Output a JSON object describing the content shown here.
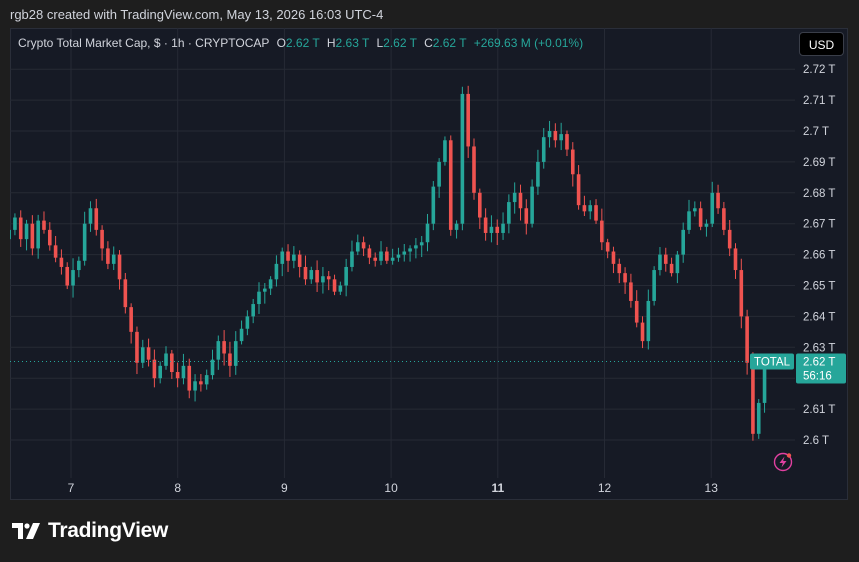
{
  "attribution": "rgb28 created with TradingView.com, May 13, 2026 16:03 UTC-4",
  "header": {
    "symbol": "Crypto Total Market Cap, $ · 1h · CRYPTOCAP",
    "o_label": "O",
    "o_value": "2.62 T",
    "h_label": "H",
    "h_value": "2.63 T",
    "l_label": "L",
    "l_value": "2.62 T",
    "c_label": "C",
    "c_value": "2.62 T",
    "change": "+269.63 M (+0.01%)"
  },
  "currency_button": "USD",
  "price_tag": {
    "label": "TOTAL",
    "value": "2.62 T",
    "countdown": "56:16"
  },
  "brand": "TradingView",
  "icons": {
    "bolt": "lightning-bolt-icon",
    "logo": "tradingview-logo-icon"
  },
  "colors": {
    "up": "#26a69a",
    "down": "#ef5350",
    "background": "#161a25",
    "grid": "#262a35",
    "axis_text": "#d1d4dc",
    "price_tag": "#26a69a",
    "bolt": "#e040a0"
  },
  "chart_data": {
    "type": "candlestick",
    "unit": "T",
    "ylim": [
      2.595,
      2.725
    ],
    "y_ticks": [
      {
        "value": 2.6,
        "label": "2.6 T"
      },
      {
        "value": 2.61,
        "label": "2.61 T"
      },
      {
        "value": 2.62,
        "label": "2.62 T"
      },
      {
        "value": 2.63,
        "label": "2.63 T"
      },
      {
        "value": 2.64,
        "label": "2.64 T"
      },
      {
        "value": 2.65,
        "label": "2.65 T"
      },
      {
        "value": 2.66,
        "label": "2.66 T"
      },
      {
        "value": 2.67,
        "label": "2.67 T"
      },
      {
        "value": 2.68,
        "label": "2.68 T"
      },
      {
        "value": 2.69,
        "label": "2.69 T"
      },
      {
        "value": 2.7,
        "label": "2.7 T"
      },
      {
        "value": 2.71,
        "label": "2.71 T"
      },
      {
        "value": 2.72,
        "label": "2.72 T"
      }
    ],
    "x_ticks": [
      {
        "day": 7,
        "label": "7",
        "bold": false
      },
      {
        "day": 8,
        "label": "8",
        "bold": false
      },
      {
        "day": 9,
        "label": "9",
        "bold": false
      },
      {
        "day": 10,
        "label": "10",
        "bold": false
      },
      {
        "day": 11,
        "label": "11",
        "bold": true
      },
      {
        "day": 12,
        "label": "12",
        "bold": false
      },
      {
        "day": 13,
        "label": "13",
        "bold": false
      }
    ],
    "x_start_day": 6.42,
    "x_end_day": 13.5,
    "last_price": 2.6254,
    "close": [
      2.668,
      2.672,
      2.665,
      2.67,
      2.662,
      2.671,
      2.668,
      2.663,
      2.659,
      2.656,
      2.65,
      2.655,
      2.658,
      2.67,
      2.675,
      2.668,
      2.662,
      2.657,
      2.66,
      2.652,
      2.643,
      2.635,
      2.625,
      2.63,
      2.626,
      2.62,
      2.624,
      2.628,
      2.622,
      2.62,
      2.624,
      2.616,
      2.619,
      2.618,
      2.621,
      2.626,
      2.632,
      2.628,
      2.624,
      2.632,
      2.636,
      2.64,
      2.644,
      2.648,
      2.649,
      2.652,
      2.657,
      2.661,
      2.658,
      2.66,
      2.656,
      2.652,
      2.655,
      2.651,
      2.653,
      2.652,
      2.648,
      2.65,
      2.656,
      2.661,
      2.664,
      2.662,
      2.659,
      2.658,
      2.661,
      2.658,
      2.659,
      2.66,
      2.661,
      2.662,
      2.663,
      2.664,
      2.67,
      2.682,
      2.69,
      2.697,
      2.668,
      2.67,
      2.712,
      2.695,
      2.68,
      2.672,
      2.667,
      2.669,
      2.667,
      2.67,
      2.677,
      2.68,
      2.675,
      2.67,
      2.682,
      2.69,
      2.698,
      2.7,
      2.697,
      2.699,
      2.694,
      2.686,
      2.676,
      2.674,
      2.676,
      2.671,
      2.664,
      2.661,
      2.657,
      2.654,
      2.651,
      2.645,
      2.638,
      2.632,
      2.645,
      2.655,
      2.66,
      2.657,
      2.654,
      2.66,
      2.668,
      2.674,
      2.675,
      2.669,
      2.67,
      2.68,
      2.675,
      2.668,
      2.662,
      2.655,
      2.64,
      2.625,
      2.602,
      2.612,
      2.6254
    ]
  }
}
